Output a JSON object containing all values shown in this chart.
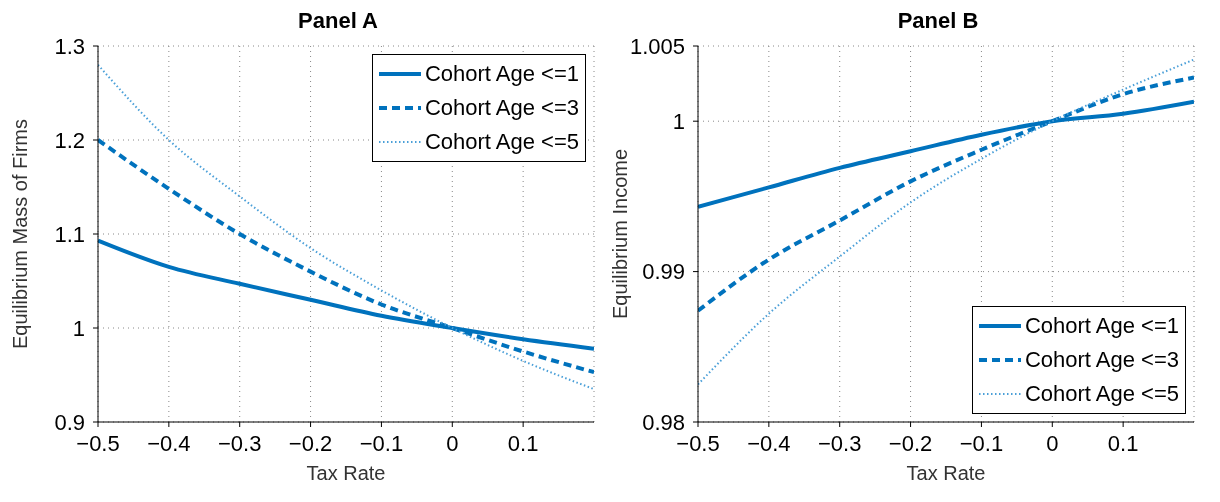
{
  "chart_data": [
    {
      "type": "line",
      "title": "Panel A",
      "xlabel": "Tax Rate",
      "ylabel": "Equilibrium Mass of Firms",
      "x": [
        -0.5,
        -0.4,
        -0.3,
        -0.2,
        -0.1,
        0,
        0.1,
        0.2
      ],
      "series": [
        {
          "name": "Cohort Age <=1",
          "color": "#0072bd",
          "line_style": "solid",
          "values": [
            1.093,
            1.065,
            1.047,
            1.03,
            1.013,
            1.0,
            0.988,
            0.978
          ]
        },
        {
          "name": "Cohort Age <=3",
          "color": "#0072bd",
          "line_style": "dashed",
          "values": [
            1.2,
            1.148,
            1.1,
            1.06,
            1.025,
            1.0,
            0.975,
            0.953
          ]
        },
        {
          "name": "Cohort Age <=5",
          "color": "#4a9fd8",
          "line_style": "dotted",
          "values": [
            1.28,
            1.2,
            1.14,
            1.085,
            1.04,
            1.0,
            0.965,
            0.935
          ]
        }
      ],
      "xlim": [
        -0.5,
        0.2
      ],
      "xticks": [
        -0.5,
        -0.4,
        -0.3,
        -0.2,
        -0.1,
        0,
        0.1
      ],
      "ylim": [
        0.9,
        1.3
      ],
      "yticks": [
        0.9,
        1,
        1.1,
        1.2,
        1.3
      ],
      "grid": true,
      "legend": "top right"
    },
    {
      "type": "line",
      "title": "Panel B",
      "xlabel": "Tax Rate",
      "ylabel": "Equilibrium Income",
      "x": [
        -0.5,
        -0.4,
        -0.3,
        -0.2,
        -0.1,
        0,
        0.1,
        0.2
      ],
      "series": [
        {
          "name": "Cohort Age <=1",
          "color": "#0072bd",
          "line_style": "solid",
          "values": [
            0.9943,
            0.9956,
            0.9969,
            0.998,
            0.9991,
            1.0,
            1.0005,
            1.0013
          ]
        },
        {
          "name": "Cohort Age <=3",
          "color": "#0072bd",
          "line_style": "dashed",
          "values": [
            0.9874,
            0.9908,
            0.9934,
            0.996,
            0.9981,
            1.0,
            1.0018,
            1.0029
          ]
        },
        {
          "name": "Cohort Age <=5",
          "color": "#4a9fd8",
          "line_style": "dotted",
          "values": [
            0.9825,
            0.9872,
            0.991,
            0.9946,
            0.9975,
            1.0,
            1.0021,
            1.0041
          ]
        }
      ],
      "xlim": [
        -0.5,
        0.2
      ],
      "xticks": [
        -0.5,
        -0.4,
        -0.3,
        -0.2,
        -0.1,
        0,
        0.1
      ],
      "ylim": [
        0.98,
        1.005
      ],
      "yticks": [
        0.98,
        0.99,
        1,
        1.005
      ],
      "grid": true,
      "legend": "bottom right"
    }
  ]
}
